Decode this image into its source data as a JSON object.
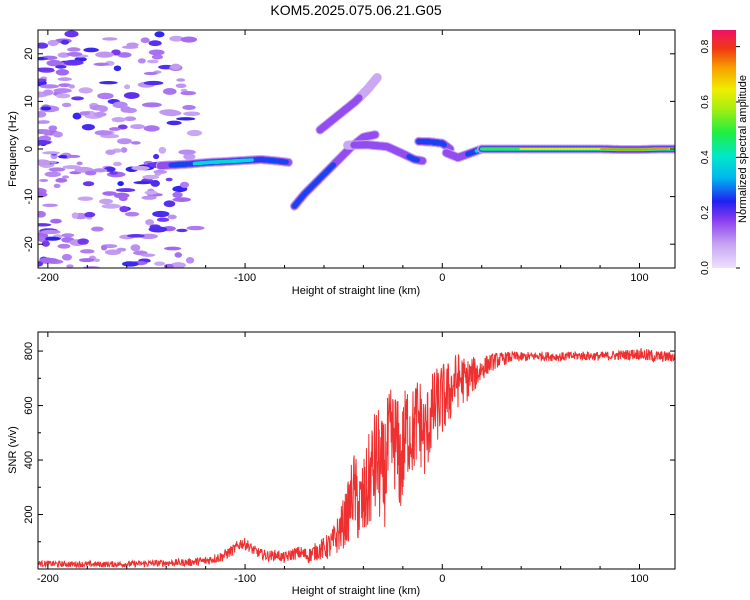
{
  "title": "KOM5.2025.075.06.21.G05",
  "chart_data": [
    {
      "type": "heatmap",
      "title": "KOM5.2025.075.06.21.G05",
      "xlabel": "Height of straight line (km)",
      "ylabel": "Frequency (Hz)",
      "xlim": [
        -205,
        118
      ],
      "ylim": [
        -25,
        25
      ],
      "x_ticks": [
        -200,
        -100,
        0,
        100
      ],
      "y_ticks": [
        -20,
        -10,
        0,
        10,
        20
      ],
      "x_tick_labels": [
        "-200",
        "-100",
        "0",
        "100"
      ],
      "y_tick_labels": [
        "-20",
        "-10",
        "0",
        "10",
        "20"
      ],
      "colorbar": {
        "label": "Normalized spectral amplitude",
        "range": [
          0,
          0.86
        ],
        "ticks": [
          0.0,
          0.2,
          0.4,
          0.6,
          0.8
        ],
        "tick_labels": [
          "0.0",
          "0.2",
          "0.4",
          "0.6",
          "0.8"
        ]
      },
      "ridges": [
        {
          "points": [
            [
              -143,
              -3.5
            ],
            [
              -130,
              -3.2
            ],
            [
              -118,
              -2.8
            ],
            [
              -108,
              -2.6
            ],
            [
              -100,
              -2.4
            ],
            [
              -92,
              -2.2
            ],
            [
              -84,
              -2.5
            ],
            [
              -78,
              -2.8
            ]
          ],
          "amplitude": [
            0.2,
            0.34,
            0.45,
            0.42,
            0.4,
            0.36,
            0.32,
            0.25
          ]
        },
        {
          "points": [
            [
              -75,
              -12
            ],
            [
              -70,
              -9.5
            ],
            [
              -64,
              -7
            ],
            [
              -58,
              -4.5
            ],
            [
              -52,
              -2
            ],
            [
              -46,
              0.5
            ],
            [
              -40,
              2.5
            ],
            [
              -34,
              3
            ]
          ],
          "amplitude": [
            0.3,
            0.35,
            0.33,
            0.28,
            0.24,
            0.22,
            0.2,
            0.18
          ]
        },
        {
          "points": [
            [
              -62,
              4
            ],
            [
              -56,
              6
            ],
            [
              -50,
              8
            ],
            [
              -44,
              10
            ],
            [
              -38,
              12.5
            ],
            [
              -33,
              15
            ]
          ],
          "amplitude": [
            0.22,
            0.24,
            0.2,
            0.17,
            0.14,
            0.1
          ]
        },
        {
          "points": [
            [
              -48,
              0.8
            ],
            [
              -38,
              0.9
            ],
            [
              -28,
              0.5
            ],
            [
              -20,
              -1
            ],
            [
              -14,
              -2.2
            ],
            [
              -10,
              -2.5
            ]
          ],
          "amplitude": [
            0.15,
            0.18,
            0.2,
            0.24,
            0.28,
            0.22
          ]
        },
        {
          "points": [
            [
              -12,
              1.6
            ],
            [
              -6,
              1.5
            ],
            [
              0,
              1.2
            ],
            [
              4,
              0
            ]
          ],
          "amplitude": [
            0.3,
            0.34,
            0.28,
            0.2
          ]
        },
        {
          "points": [
            [
              2,
              -0.8
            ],
            [
              8,
              -1.8
            ],
            [
              12,
              -1.2
            ],
            [
              20,
              0
            ]
          ],
          "amplitude": [
            0.22,
            0.2,
            0.24,
            0.45
          ]
        },
        {
          "points": [
            [
              20,
              0
            ],
            [
              40,
              0
            ],
            [
              60,
              0
            ],
            [
              80,
              0
            ],
            [
              90,
              -0.1
            ],
            [
              100,
              -0.1
            ],
            [
              110,
              0
            ],
            [
              118,
              0
            ]
          ],
          "amplitude": [
            0.55,
            0.62,
            0.68,
            0.74,
            0.8,
            0.86,
            0.82,
            0.7
          ]
        }
      ]
    },
    {
      "type": "line",
      "xlabel": "Height of straight line (km)",
      "ylabel": "SNR (v/v)",
      "xlim": [
        -205,
        118
      ],
      "ylim": [
        0,
        870
      ],
      "x_ticks": [
        -200,
        -100,
        0,
        100
      ],
      "y_ticks": [
        200,
        400,
        600,
        800
      ],
      "x_tick_labels": [
        "-200",
        "-100",
        "0",
        "100"
      ],
      "y_tick_labels": [
        "200",
        "400",
        "600",
        "800"
      ],
      "series": [
        {
          "color": "#ee3030",
          "x": [
            -205,
            -190,
            -175,
            -160,
            -150,
            -140,
            -130,
            -120,
            -112,
            -106,
            -102,
            -99,
            -96,
            -92,
            -88,
            -84,
            -80,
            -76,
            -72,
            -68,
            -64,
            -60,
            -56,
            -52,
            -48,
            -45,
            -42,
            -39,
            -36,
            -33,
            -30,
            -27,
            -24,
            -21,
            -18,
            -15,
            -12,
            -9,
            -6,
            -3,
            0,
            3,
            6,
            9,
            12,
            15,
            18,
            21,
            24,
            27,
            30,
            33,
            36,
            40,
            50,
            60,
            70,
            80,
            90,
            100,
            105,
            110,
            118
          ],
          "y": [
            20,
            18,
            17,
            18,
            20,
            22,
            24,
            30,
            45,
            70,
            95,
            90,
            70,
            55,
            48,
            52,
            40,
            55,
            60,
            48,
            65,
            75,
            90,
            140,
            200,
            300,
            220,
            260,
            350,
            400,
            330,
            450,
            480,
            380,
            520,
            500,
            560,
            480,
            560,
            600,
            620,
            640,
            680,
            700,
            690,
            710,
            720,
            740,
            755,
            765,
            770,
            775,
            780,
            778,
            782,
            779,
            783,
            781,
            785,
            790,
            782,
            780,
            778
          ],
          "noise_amplitude": [
            8,
            8,
            8,
            8,
            9,
            9,
            10,
            12,
            14,
            15,
            16,
            15,
            14,
            14,
            14,
            14,
            15,
            16,
            18,
            20,
            24,
            30,
            40,
            55,
            80,
            100,
            110,
            120,
            140,
            150,
            150,
            150,
            140,
            140,
            130,
            120,
            120,
            115,
            110,
            100,
            100,
            90,
            80,
            70,
            60,
            50,
            40,
            30,
            25,
            22,
            18,
            16,
            14,
            13,
            12,
            12,
            12,
            12,
            13,
            15,
            18,
            15,
            14
          ]
        }
      ]
    }
  ]
}
